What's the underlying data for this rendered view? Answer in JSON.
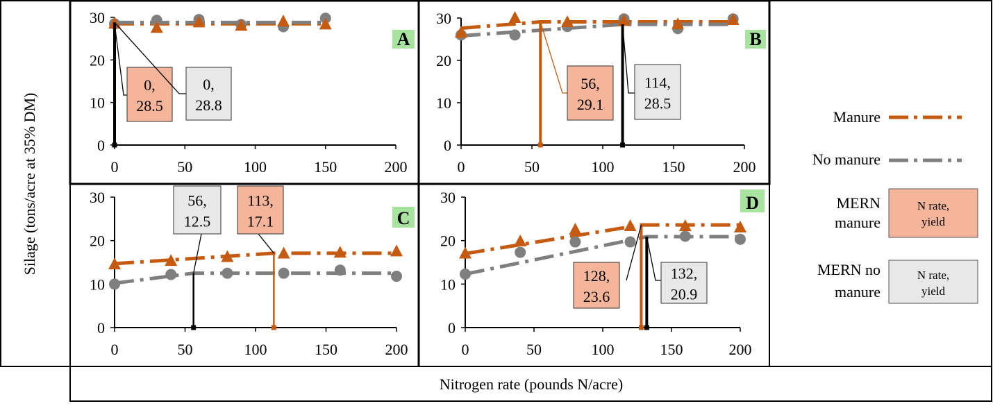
{
  "chart_data": [
    {
      "type": "line",
      "panel": "A",
      "xlim": [
        0,
        200
      ],
      "ylim": [
        0,
        30
      ],
      "xticks": [
        0,
        50,
        100,
        150,
        200
      ],
      "yticks": [
        0,
        10,
        20,
        30
      ],
      "series": [
        {
          "name": "Manure",
          "marker": "triangle",
          "x": [
            0,
            30,
            60,
            90,
            120,
            150
          ],
          "y": [
            28.5,
            27.5,
            28.8,
            28.0,
            29.0,
            28.3
          ],
          "fit": [
            [
              0,
              28.5
            ],
            [
              150,
              28.5
            ]
          ]
        },
        {
          "name": "No manure",
          "marker": "circle",
          "x": [
            0,
            30,
            60,
            90,
            120,
            150
          ],
          "y": [
            28.5,
            29.3,
            29.5,
            28.3,
            27.8,
            29.8
          ],
          "fit": [
            [
              0,
              28.8
            ],
            [
              150,
              28.8
            ]
          ]
        }
      ],
      "mern": [
        {
          "kind": "manure",
          "x": 0,
          "y": 28.5,
          "label": [
            "0,",
            "28.5"
          ]
        },
        {
          "kind": "no-manure",
          "x": 0,
          "y": 28.8,
          "label": [
            "0,",
            "28.8"
          ]
        }
      ]
    },
    {
      "type": "line",
      "panel": "B",
      "xlim": [
        0,
        200
      ],
      "ylim": [
        0,
        30
      ],
      "xticks": [
        0,
        50,
        100,
        150,
        200
      ],
      "yticks": [
        0,
        10,
        20,
        30
      ],
      "series": [
        {
          "name": "Manure",
          "marker": "triangle",
          "x": [
            0,
            38,
            75,
            115,
            153,
            192
          ],
          "y": [
            26.5,
            30.0,
            29.0,
            29.3,
            28.5,
            29.5
          ],
          "fit": [
            [
              0,
              27.6
            ],
            [
              56,
              29.1
            ],
            [
              192,
              29.1
            ]
          ]
        },
        {
          "name": "No manure",
          "marker": "circle",
          "x": [
            0,
            38,
            75,
            115,
            153,
            192
          ],
          "y": [
            26.0,
            26.0,
            28.0,
            29.8,
            27.5,
            29.8
          ],
          "fit": [
            [
              0,
              25.8
            ],
            [
              114,
              28.5
            ],
            [
              192,
              28.5
            ]
          ]
        }
      ],
      "mern": [
        {
          "kind": "manure",
          "x": 56,
          "y": 29.1,
          "label": [
            "56,",
            "29.1"
          ]
        },
        {
          "kind": "no-manure",
          "x": 114,
          "y": 28.5,
          "label": [
            "114,",
            "28.5"
          ]
        }
      ]
    },
    {
      "type": "line",
      "panel": "C",
      "xlim": [
        0,
        200
      ],
      "ylim": [
        0,
        30
      ],
      "xticks": [
        0,
        50,
        100,
        150,
        200
      ],
      "yticks": [
        0,
        10,
        20,
        30
      ],
      "series": [
        {
          "name": "Manure",
          "marker": "triangle",
          "x": [
            0,
            40,
            80,
            120,
            160,
            200
          ],
          "y": [
            14.5,
            15.3,
            16.2,
            17.0,
            17.2,
            17.5
          ],
          "fit": [
            [
              0,
              14.7
            ],
            [
              113,
              17.1
            ],
            [
              200,
              17.1
            ]
          ]
        },
        {
          "name": "No manure",
          "marker": "circle",
          "x": [
            0,
            40,
            80,
            120,
            160,
            200
          ],
          "y": [
            10.0,
            12.2,
            12.5,
            12.5,
            13.2,
            11.8
          ],
          "fit": [
            [
              0,
              10.2
            ],
            [
              56,
              12.5
            ],
            [
              200,
              12.5
            ]
          ]
        }
      ],
      "mern": [
        {
          "kind": "no-manure",
          "x": 56,
          "y": 12.5,
          "label": [
            "56,",
            "12.5"
          ]
        },
        {
          "kind": "manure",
          "x": 113,
          "y": 17.1,
          "label": [
            "113,",
            "17.1"
          ]
        }
      ]
    },
    {
      "type": "line",
      "panel": "D",
      "xlim": [
        0,
        200
      ],
      "ylim": [
        0,
        30
      ],
      "xticks": [
        0,
        50,
        100,
        150,
        200
      ],
      "yticks": [
        0,
        10,
        20,
        30
      ],
      "series": [
        {
          "name": "Manure",
          "marker": "triangle",
          "x": [
            0,
            40,
            80,
            120,
            160,
            200
          ],
          "y": [
            17.0,
            19.8,
            22.5,
            23.3,
            23.3,
            23.0
          ],
          "fit": [
            [
              0,
              17.0
            ],
            [
              128,
              23.6
            ],
            [
              200,
              23.6
            ]
          ]
        },
        {
          "name": "No manure",
          "marker": "circle",
          "x": [
            0,
            40,
            80,
            120,
            160,
            200
          ],
          "y": [
            12.3,
            17.3,
            19.7,
            19.7,
            21.0,
            20.3
          ],
          "fit": [
            [
              0,
              12.3
            ],
            [
              132,
              20.9
            ],
            [
              200,
              20.9
            ]
          ]
        }
      ],
      "mern": [
        {
          "kind": "manure",
          "x": 128,
          "y": 23.6,
          "label": [
            "128,",
            "23.6"
          ]
        },
        {
          "kind": "no-manure",
          "x": 132,
          "y": 20.9,
          "label": [
            "132,",
            "20.9"
          ]
        }
      ]
    }
  ],
  "ylabel": "Silage (tons/acre at 35% DM)",
  "xlabel": "Nitrogen rate (pounds N/acre)",
  "legend": {
    "placement": "right",
    "manure": "Manure",
    "no_manure": "No manure",
    "mern_manure": [
      "MERN",
      "manure"
    ],
    "mern_no_manure": [
      "MERN no",
      "manure"
    ],
    "box_text": [
      "N rate,",
      "yield"
    ]
  },
  "colors": {
    "manure": "#c55a11",
    "no_manure": "#7f7f7f",
    "mern_manure_fill": "#f4b59a",
    "mern_no_manure_fill": "#e8e8e8",
    "panel_badge": "#a8e4a0"
  }
}
